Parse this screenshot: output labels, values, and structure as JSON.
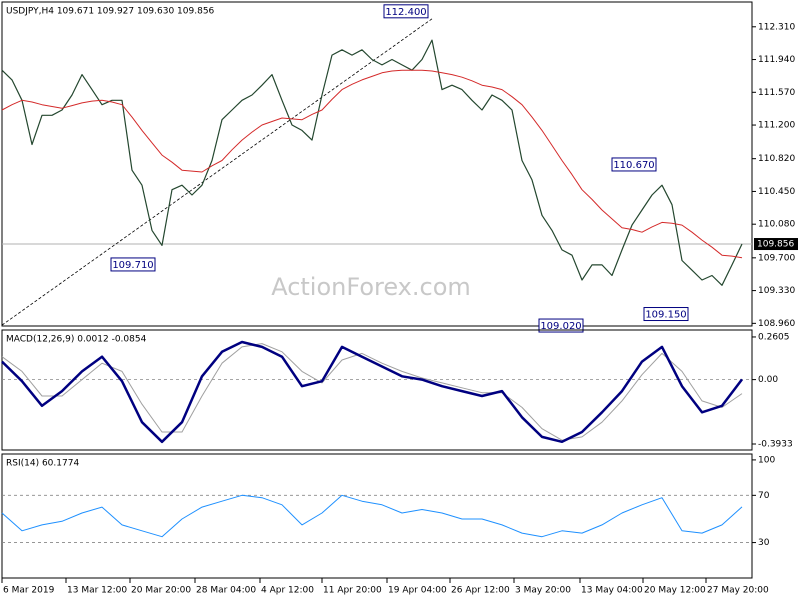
{
  "chart_data": [
    {
      "type": "line",
      "title": "USDJPY,H4  109.671 109.927 109.630 109.856",
      "watermark": "ActionForex.com",
      "xlim": [
        0,
        75
      ],
      "ylim": [
        108.93,
        112.59
      ],
      "yticks": [
        {
          "value": 108.96,
          "label": "108.960"
        },
        {
          "value": 109.33,
          "label": "109.330"
        },
        {
          "value": 109.7,
          "label": "109.700"
        },
        {
          "value": 110.08,
          "label": "110.080"
        },
        {
          "value": 110.45,
          "label": "110.450"
        },
        {
          "value": 110.82,
          "label": "110.820"
        },
        {
          "value": 111.2,
          "label": "111.200"
        },
        {
          "value": 111.57,
          "label": "111.570"
        },
        {
          "value": 111.94,
          "label": "111.940"
        },
        {
          "value": 112.31,
          "label": "112.310"
        }
      ],
      "x": [
        0,
        1,
        2,
        3,
        4,
        5,
        6,
        7,
        8,
        9,
        10,
        11,
        12,
        13,
        14,
        15,
        16,
        17,
        18,
        19,
        20,
        21,
        22,
        23,
        24,
        25,
        26,
        27,
        28,
        29,
        30,
        31,
        32,
        33,
        34,
        35,
        36,
        37,
        38,
        39,
        40,
        41,
        42,
        43,
        44,
        45,
        46,
        47,
        48,
        49,
        50,
        51,
        52,
        53,
        54,
        55,
        56,
        57,
        58,
        59,
        60,
        61,
        62,
        63,
        64,
        65,
        66,
        67,
        68,
        69,
        70,
        71,
        72,
        73,
        74
      ],
      "series": [
        {
          "name": "USDJPY",
          "color": "#24472f",
          "width": 1.2,
          "values": [
            111.82,
            111.71,
            111.48,
            110.98,
            111.31,
            111.31,
            111.37,
            111.54,
            111.77,
            111.6,
            111.43,
            111.48,
            111.48,
            110.69,
            110.52,
            110.01,
            109.84,
            110.47,
            110.52,
            110.41,
            110.52,
            110.8,
            111.26,
            111.37,
            111.48,
            111.54,
            111.65,
            111.77,
            111.48,
            111.2,
            111.14,
            111.03,
            111.54,
            111.99,
            112.05,
            111.99,
            112.05,
            111.94,
            111.88,
            111.94,
            111.88,
            111.82,
            111.94,
            112.16,
            111.6,
            111.65,
            111.6,
            111.48,
            111.37,
            111.54,
            111.48,
            111.37,
            110.8,
            110.58,
            110.18,
            110.01,
            109.79,
            109.73,
            109.45,
            109.62,
            109.62,
            109.5,
            109.79,
            110.07,
            110.24,
            110.41,
            110.52,
            110.3,
            109.67,
            109.56,
            109.45,
            109.5,
            109.39,
            109.62,
            109.856
          ]
        },
        {
          "name": "MA",
          "color": "#d42a2a",
          "width": 1,
          "values": [
            111.37,
            111.43,
            111.48,
            111.46,
            111.43,
            111.41,
            111.39,
            111.42,
            111.45,
            111.47,
            111.48,
            111.46,
            111.43,
            111.29,
            111.14,
            111.0,
            110.86,
            110.78,
            110.69,
            110.68,
            110.67,
            110.74,
            110.8,
            110.92,
            111.03,
            111.12,
            111.2,
            111.24,
            111.28,
            111.27,
            111.26,
            111.32,
            111.37,
            111.49,
            111.6,
            111.66,
            111.71,
            111.75,
            111.79,
            111.81,
            111.82,
            111.82,
            111.82,
            111.81,
            111.79,
            111.77,
            111.74,
            111.7,
            111.65,
            111.63,
            111.6,
            111.52,
            111.43,
            111.29,
            111.14,
            110.97,
            110.8,
            110.64,
            110.47,
            110.36,
            110.24,
            110.14,
            110.04,
            110.02,
            109.99,
            110.05,
            110.1,
            110.09,
            110.07,
            109.99,
            109.9,
            109.82,
            109.73,
            109.72,
            109.7
          ]
        }
      ],
      "last": 109.856,
      "trendline": {
        "x": [
          0,
          43
        ],
        "y": [
          108.94,
          112.4
        ]
      },
      "annotations": [
        {
          "value": 112.4,
          "label": "112.400",
          "x": 42.8,
          "position": "above"
        },
        {
          "value": 109.71,
          "label": "109.710",
          "x": 15.5,
          "position": "below"
        },
        {
          "value": 110.67,
          "label": "110.670",
          "x": 65.6,
          "position": "above"
        },
        {
          "value": 109.02,
          "label": "109.020",
          "x": 58.3,
          "position": "below"
        },
        {
          "value": 109.15,
          "label": "109.150",
          "x": 68.8,
          "position": "below"
        }
      ]
    },
    {
      "type": "line",
      "title": "MACD(12,26,9) 0.0012 -0.0854",
      "xlim": [
        0,
        75
      ],
      "ylim": [
        -0.43,
        0.303
      ],
      "yticks": [
        -0.3933,
        {
          "value": 0,
          "label": "0.00"
        },
        0.2605
      ],
      "levels": [
        0
      ],
      "x": [
        0,
        2,
        4,
        6,
        8,
        10,
        12,
        14,
        16,
        18,
        20,
        22,
        24,
        26,
        28,
        30,
        32,
        34,
        36,
        38,
        40,
        42,
        44,
        46,
        48,
        50,
        52,
        54,
        56,
        58,
        60,
        62,
        64,
        66,
        68,
        70,
        72,
        74
      ],
      "series": [
        {
          "name": "Signal",
          "color": "#a0a0a0",
          "width": 1,
          "values": [
            0.14,
            0.05,
            -0.1,
            -0.1,
            0.0,
            0.1,
            0.05,
            -0.15,
            -0.32,
            -0.32,
            -0.1,
            0.1,
            0.2,
            0.22,
            0.17,
            0.05,
            -0.02,
            0.12,
            0.16,
            0.1,
            0.05,
            0.01,
            -0.02,
            -0.05,
            -0.08,
            -0.08,
            -0.17,
            -0.3,
            -0.37,
            -0.35,
            -0.26,
            -0.13,
            0.03,
            0.16,
            0.05,
            -0.13,
            -0.17,
            -0.0854
          ]
        },
        {
          "name": "MACD",
          "color": "#000080",
          "width": 2.5,
          "values": [
            0.11,
            -0.01,
            -0.16,
            -0.07,
            0.05,
            0.14,
            -0.01,
            -0.26,
            -0.38,
            -0.26,
            0.02,
            0.17,
            0.23,
            0.2,
            0.14,
            -0.04,
            -0.01,
            0.2,
            0.14,
            0.08,
            0.02,
            0.0,
            -0.04,
            -0.07,
            -0.1,
            -0.07,
            -0.23,
            -0.35,
            -0.38,
            -0.32,
            -0.2,
            -0.07,
            0.11,
            0.2,
            -0.04,
            -0.2,
            -0.16,
            0.0012
          ]
        }
      ]
    },
    {
      "type": "line",
      "title": "RSI(14) 60.1774",
      "xlim": [
        0,
        75
      ],
      "ylim": [
        0,
        105
      ],
      "yticks": [
        30,
        70,
        100
      ],
      "levels": [
        30,
        70
      ],
      "x": [
        0,
        2,
        4,
        6,
        8,
        10,
        12,
        14,
        16,
        18,
        20,
        22,
        24,
        26,
        28,
        30,
        32,
        34,
        36,
        38,
        40,
        42,
        44,
        46,
        48,
        50,
        52,
        54,
        56,
        58,
        60,
        62,
        64,
        66,
        68,
        70,
        72,
        74
      ],
      "series": [
        {
          "name": "RSI",
          "color": "#1e90ff",
          "width": 1,
          "values": [
            55,
            40,
            45,
            48,
            55,
            60,
            45,
            40,
            35,
            50,
            60,
            65,
            70,
            68,
            62,
            45,
            55,
            70,
            65,
            62,
            55,
            58,
            55,
            50,
            50,
            45,
            38,
            35,
            40,
            38,
            45,
            55,
            62,
            68,
            40,
            38,
            45,
            60.1774
          ]
        }
      ],
      "xticks": [
        {
          "value": 0,
          "label": "6 Mar 2019"
        },
        {
          "value": 6.4,
          "label": "13 Mar 12:00"
        },
        {
          "value": 12.8,
          "label": "20 Mar 20:00"
        },
        {
          "value": 19.3,
          "label": "28 Mar 04:00"
        },
        {
          "value": 25.8,
          "label": "4 Apr 12:00"
        },
        {
          "value": 32,
          "label": "11 Apr 20:00"
        },
        {
          "value": 38.5,
          "label": "19 Apr 04:00"
        },
        {
          "value": 44.8,
          "label": "26 Apr 12:00"
        },
        {
          "value": 51.2,
          "label": "3 May 20:00"
        },
        {
          "value": 57.8,
          "label": "13 May 04:00"
        },
        {
          "value": 64.1,
          "label": "20 May 12:00"
        },
        {
          "value": 70.4,
          "label": "27 May 20:00"
        }
      ]
    }
  ]
}
